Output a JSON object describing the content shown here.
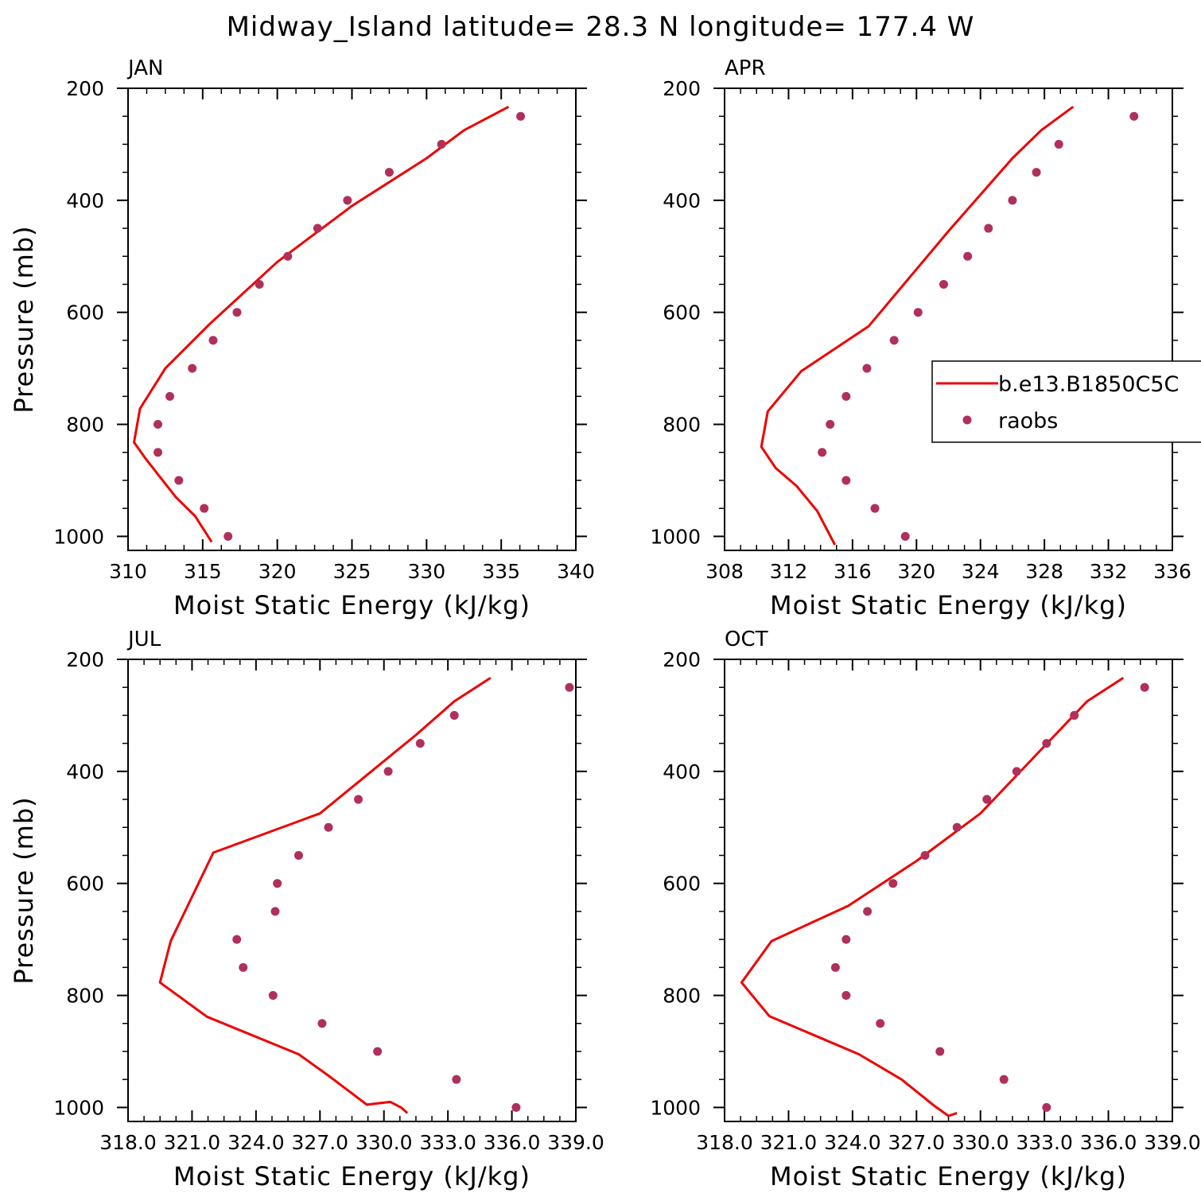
{
  "title": "Midway_Island  latitude= 28.3 N longitude= 177.4 W",
  "colors": {
    "model": "#ee0000",
    "obs": "#b0305a",
    "axis": "#000000"
  },
  "legend": {
    "entries": [
      {
        "label": "b.e13.B1850C5C",
        "style": "line"
      },
      {
        "label": "raobs",
        "style": "dot"
      }
    ]
  },
  "chart_data": [
    {
      "type": "line",
      "title": "JAN",
      "xlabel": "Moist Static Energy (kJ/kg)",
      "ylabel": "Pressure (mb)",
      "xlim": [
        310,
        340
      ],
      "ylim": [
        1025,
        200
      ],
      "y_reversed": true,
      "xticks": [
        "310",
        "315",
        "320",
        "325",
        "330",
        "335",
        "340"
      ],
      "yticks": [
        "200",
        "400",
        "600",
        "800",
        "1000"
      ],
      "series": [
        {
          "name": "b.e13.B1850C5C",
          "style": "line",
          "x": [
            335.5,
            332.5,
            330.0,
            325.0,
            320.0,
            315.5,
            312.5,
            310.8,
            310.4,
            311.2,
            312.2,
            313.2,
            314.5,
            315.6
          ],
          "y": [
            233,
            275,
            325,
            410,
            510,
            620,
            700,
            772,
            832,
            862,
            896,
            930,
            964,
            1010
          ]
        },
        {
          "name": "raobs",
          "style": "dot",
          "x": [
            336.3,
            331.0,
            327.5,
            324.7,
            322.7,
            320.7,
            318.8,
            317.3,
            315.7,
            314.3,
            312.8,
            312.0,
            312.0,
            313.4,
            315.1,
            316.7
          ],
          "y": [
            250,
            300,
            350,
            400,
            450,
            500,
            550,
            600,
            650,
            700,
            750,
            800,
            850,
            900,
            950,
            1000
          ]
        }
      ]
    },
    {
      "type": "line",
      "title": "APR",
      "xlabel": "Moist Static Energy (kJ/kg)",
      "ylabel": "",
      "xlim": [
        308,
        336
      ],
      "ylim": [
        1025,
        200
      ],
      "y_reversed": true,
      "xticks": [
        "308",
        "312",
        "316",
        "320",
        "324",
        "328",
        "332",
        "336"
      ],
      "yticks": [
        "200",
        "400",
        "600",
        "800",
        "1000"
      ],
      "series": [
        {
          "name": "b.e13.B1850C5C",
          "style": "line",
          "x": [
            329.8,
            327.8,
            326.0,
            322.0,
            317.0,
            312.8,
            310.7,
            310.3,
            311.2,
            312.5,
            313.8,
            314.9
          ],
          "y": [
            233,
            275,
            325,
            455,
            625,
            705,
            777,
            840,
            878,
            910,
            955,
            1015
          ]
        },
        {
          "name": "raobs",
          "style": "dot",
          "x": [
            333.6,
            328.9,
            327.5,
            326.0,
            324.5,
            323.2,
            321.7,
            320.1,
            318.6,
            316.9,
            315.6,
            314.6,
            314.1,
            315.6,
            317.4,
            319.3
          ],
          "y": [
            250,
            300,
            350,
            400,
            450,
            500,
            550,
            600,
            650,
            700,
            750,
            800,
            850,
            900,
            950,
            1000
          ]
        }
      ]
    },
    {
      "type": "line",
      "title": "JUL",
      "xlabel": "Moist Static Energy (kJ/kg)",
      "ylabel": "Pressure (mb)",
      "xlim": [
        318.0,
        339.0
      ],
      "ylim": [
        1025,
        200
      ],
      "y_reversed": true,
      "xticks": [
        "318.0",
        "321.0",
        "324.0",
        "327.0",
        "330.0",
        "333.0",
        "336.0",
        "339.0"
      ],
      "yticks": [
        "200",
        "400",
        "600",
        "800",
        "1000"
      ],
      "series": [
        {
          "name": "b.e13.B1850C5C",
          "style": "line",
          "x": [
            335.0,
            333.3,
            331.5,
            327.0,
            322.0,
            320.0,
            319.5,
            321.7,
            326.0,
            327.5,
            329.2,
            330.3,
            330.8,
            331.1
          ],
          "y": [
            233,
            275,
            335,
            475,
            545,
            703,
            777,
            838,
            905,
            946,
            995,
            990,
            1000,
            1010
          ]
        },
        {
          "name": "raobs",
          "style": "dot",
          "x": [
            338.7,
            333.3,
            331.7,
            330.2,
            328.8,
            327.4,
            326.0,
            325.0,
            324.9,
            323.1,
            323.4,
            324.8,
            327.1,
            329.7,
            333.4,
            336.2
          ],
          "y": [
            250,
            300,
            350,
            400,
            450,
            500,
            550,
            600,
            650,
            700,
            750,
            800,
            850,
            900,
            950,
            1000
          ]
        }
      ]
    },
    {
      "type": "line",
      "title": "OCT",
      "xlabel": "Moist Static Energy (kJ/kg)",
      "ylabel": "",
      "xlim": [
        318.0,
        339.0
      ],
      "ylim": [
        1025,
        200
      ],
      "y_reversed": true,
      "xticks": [
        "318.0",
        "321.0",
        "324.0",
        "327.0",
        "330.0",
        "333.0",
        "336.0",
        "339.0"
      ],
      "yticks": [
        "200",
        "400",
        "600",
        "800",
        "1000"
      ],
      "series": [
        {
          "name": "b.e13.B1850C5C",
          "style": "line",
          "x": [
            336.7,
            335.0,
            333.5,
            330.0,
            327.0,
            323.8,
            320.2,
            318.8,
            320.1,
            324.3,
            326.3,
            327.8,
            328.5,
            328.9
          ],
          "y": [
            233,
            275,
            335,
            475,
            560,
            640,
            703,
            777,
            837,
            905,
            950,
            996,
            1015,
            1010
          ]
        },
        {
          "name": "raobs",
          "style": "dot",
          "x": [
            337.7,
            334.4,
            333.1,
            331.7,
            330.3,
            328.9,
            327.4,
            325.9,
            324.7,
            323.7,
            323.2,
            323.7,
            325.3,
            328.1,
            331.1,
            333.1
          ],
          "y": [
            250,
            300,
            350,
            400,
            450,
            500,
            550,
            600,
            650,
            700,
            750,
            800,
            850,
            900,
            950,
            1000
          ]
        }
      ]
    }
  ]
}
